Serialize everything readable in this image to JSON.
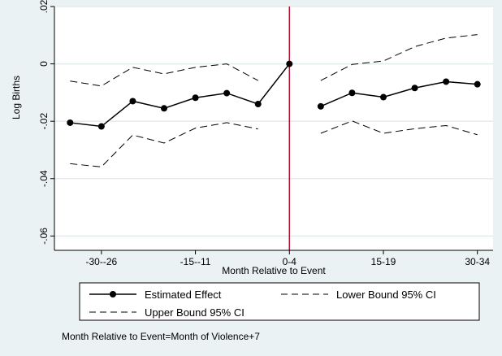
{
  "chart_data": {
    "type": "line",
    "xlabel": "Month Relative to Event",
    "ylabel": "Log Births",
    "ylim": [
      -0.065,
      0.02
    ],
    "xlim": [
      -14.5,
      10.5
    ],
    "grid": true,
    "y_ticks": [
      {
        "value": 0.02,
        "label": ".02"
      },
      {
        "value": 0,
        "label": "0"
      },
      {
        "value": -0.02,
        "label": "-.02"
      },
      {
        "value": -0.04,
        "label": "-.04"
      },
      {
        "value": -0.06,
        "label": "-.06"
      }
    ],
    "x_ticks": [
      {
        "value": -10,
        "label": "-30--26"
      },
      {
        "value": -5,
        "label": "-15--11"
      },
      {
        "value": 0,
        "label": "0-4"
      },
      {
        "value": 5,
        "label": "15-19"
      },
      {
        "value": 10,
        "label": "30-34"
      }
    ],
    "event_line_x": 0,
    "event_line_color": "#b01030",
    "series": [
      {
        "name": "Estimated Effect",
        "style": "solid-markers",
        "segments": [
          {
            "x": [
              -12,
              -10,
              -8,
              -6,
              -4,
              -2,
              0
            ],
            "y": [
              -0.0205,
              -0.0218,
              -0.013,
              -0.0155,
              -0.0118,
              -0.0102,
              -0.014
            ]
          },
          {
            "x": [
              -2,
              0
            ],
            "y": [
              -0.014,
              0.0
            ]
          },
          {
            "x": [
              2,
              4,
              6,
              8,
              10
            ],
            "y": [
              -0.0148,
              -0.0101,
              -0.0116,
              -0.0084,
              -0.0062
            ]
          },
          {
            "x": [
              10
            ],
            "y": [
              -0.0071
            ]
          }
        ],
        "points": [
          {
            "x": -14,
            "y": -0.0205
          },
          {
            "x": -12,
            "y": -0.0218
          },
          {
            "x": -10,
            "y": -0.013
          },
          {
            "x": -8,
            "y": -0.0155
          },
          {
            "x": -6,
            "y": -0.0118
          },
          {
            "x": -4,
            "y": -0.0102
          },
          {
            "x": -2,
            "y": -0.014
          },
          {
            "x": 0,
            "y": 0.0
          },
          {
            "x": 2,
            "y": -0.0148
          },
          {
            "x": 4,
            "y": -0.0101
          },
          {
            "x": 6,
            "y": -0.0116
          },
          {
            "x": 8,
            "y": -0.0084
          },
          {
            "x": 10,
            "y": -0.0062
          },
          {
            "x": 12,
            "y": -0.0071
          }
        ]
      },
      {
        "name": "Lower Bound 95% CI",
        "style": "dashed",
        "points_pre": [
          {
            "x": -14,
            "y": -0.006
          },
          {
            "x": -12,
            "y": -0.0077
          },
          {
            "x": -10,
            "y": -0.0012
          },
          {
            "x": -8,
            "y": -0.0035
          },
          {
            "x": -6,
            "y": -0.0012
          },
          {
            "x": -4,
            "y": 0.0
          },
          {
            "x": -2,
            "y": -0.0058
          }
        ],
        "points_post": [
          {
            "x": 2,
            "y": -0.0058
          },
          {
            "x": 4,
            "y": -0.0002
          },
          {
            "x": 6,
            "y": 0.001
          },
          {
            "x": 8,
            "y": 0.006
          },
          {
            "x": 10,
            "y": 0.009
          },
          {
            "x": 12,
            "y": 0.0102
          }
        ]
      },
      {
        "name": "Upper Bound 95% CI",
        "style": "dashed",
        "points_pre": [
          {
            "x": -14,
            "y": -0.0348
          },
          {
            "x": -12,
            "y": -0.0359
          },
          {
            "x": -10,
            "y": -0.0248
          },
          {
            "x": -8,
            "y": -0.0276
          },
          {
            "x": -6,
            "y": -0.0224
          },
          {
            "x": -4,
            "y": -0.0205
          },
          {
            "x": -2,
            "y": -0.0227
          }
        ],
        "points_post": [
          {
            "x": 2,
            "y": -0.0242
          },
          {
            "x": 4,
            "y": -0.0199
          },
          {
            "x": 6,
            "y": -0.0242
          },
          {
            "x": 8,
            "y": -0.0226
          },
          {
            "x": 10,
            "y": -0.0215
          },
          {
            "x": 12,
            "y": -0.0247
          }
        ]
      }
    ],
    "legend": {
      "placement": "bottom",
      "entries": [
        "Estimated Effect",
        "Lower Bound 95% CI",
        "Upper Bound 95% CI"
      ]
    },
    "note": "Month Relative to Event=Month of Violence+7"
  },
  "colors": {
    "background": "#eaf2f3",
    "plot_background": "#ffffff",
    "grid": "#e3ecec",
    "series": "#000000",
    "event_line": "#b01030"
  }
}
